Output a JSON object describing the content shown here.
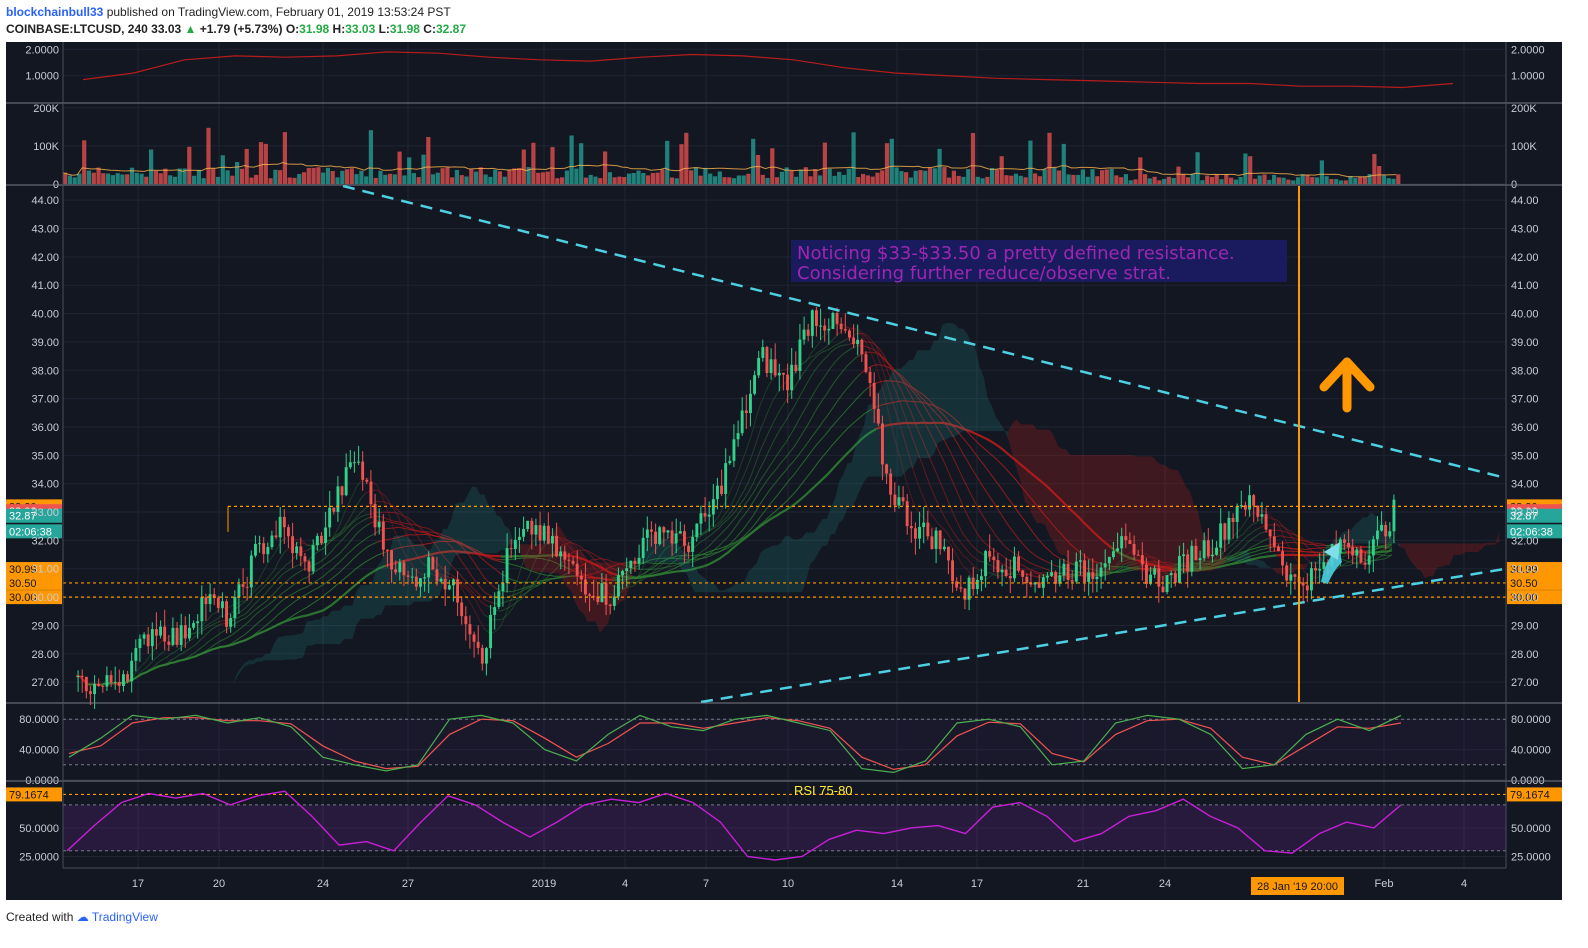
{
  "header": {
    "user": "blockchainbull33",
    "published": "published on TradingView.com, February 01, 2019 13:53:24 PST",
    "symbol": "COINBASE:LTCUSD, 240",
    "last": "33.03",
    "change_arrow": "▲",
    "change": "+1.79 (+5.73%)",
    "o_label": "O:",
    "o": "31.98",
    "h_label": "H:",
    "h": "33.03",
    "l_label": "L:",
    "l": "31.98",
    "c_label": "C:",
    "c": "32.87"
  },
  "footer": {
    "created_with": "Created with",
    "brand": "TradingView"
  },
  "annotation": {
    "line1": "Noticing $33-$33.50 a pretty defined resistance.",
    "line2": "Considering further reduce/observe strat.",
    "rsi_label": "RSI 75-80",
    "date_tag": "28 Jan '19   20:00"
  },
  "colors": {
    "bg": "#131722",
    "bull": "#26a69a",
    "bear": "#ef5350",
    "orange": "#ff9800",
    "trend": "#4dd0e1",
    "annotation_text": "#9c27b0",
    "annotation_bg": "#1a1a5e"
  },
  "chart_data": [
    {
      "type": "line",
      "panel": "indicator-top",
      "ylim": [
        0,
        2.2
      ],
      "ticks": [
        "2.0000",
        "1.0000"
      ],
      "values": [
        0.85,
        1.1,
        1.6,
        1.75,
        1.7,
        1.75,
        1.9,
        1.85,
        1.7,
        1.6,
        1.55,
        1.7,
        1.8,
        1.75,
        1.6,
        1.3,
        1.1,
        1.0,
        0.9,
        0.85,
        0.8,
        0.75,
        0.7,
        0.7,
        0.6,
        0.6,
        0.55,
        0.7
      ]
    },
    {
      "type": "bar",
      "panel": "volume",
      "ylim": [
        0,
        210000
      ],
      "ticks": [
        "200K",
        "100K",
        "0"
      ]
    },
    {
      "type": "candlestick",
      "panel": "price",
      "ylim": [
        26.3,
        44.5
      ],
      "ticks": [
        "44.00",
        "43.00",
        "42.00",
        "41.00",
        "40.00",
        "39.00",
        "38.00",
        "37.00",
        "36.00",
        "35.00",
        "34.00",
        "33.00",
        "32.00",
        "31.00",
        "30.00",
        "29.00",
        "28.00",
        "27.00"
      ],
      "x_ticks": [
        "17",
        "20",
        "24",
        "27",
        "2019",
        "4",
        "7",
        "10",
        "14",
        "17",
        "21",
        "24",
        "Feb",
        "4"
      ],
      "close_path": [
        27.0,
        26.8,
        27.5,
        29.0,
        28.5,
        30.0,
        29.2,
        31.5,
        32.5,
        31.0,
        33.0,
        35.0,
        32.0,
        30.5,
        31.2,
        30.0,
        28.0,
        31.5,
        32.5,
        31.5,
        30.5,
        30.0,
        31.5,
        32.5,
        31.8,
        33.0,
        35.5,
        38.5,
        37.5,
        40.0,
        39.5,
        38.5,
        34.0,
        32.5,
        32.0,
        30.0,
        31.5,
        31.0,
        30.5,
        31.0,
        30.8,
        32.0,
        31.0,
        30.5,
        31.5,
        32.0,
        33.5,
        32.5,
        30.5,
        30.8,
        32.0,
        31.5,
        33.0
      ],
      "levels": [
        {
          "value": 33.2,
          "label": "33.20"
        },
        {
          "value": 30.5,
          "label": "30.50"
        },
        {
          "value": 30.0,
          "label": "30.00"
        }
      ],
      "right_tags": [
        {
          "value": 33.2,
          "label": "33.20",
          "color": "#ff9800"
        },
        {
          "value": 33.03,
          "label": "33.03",
          "color": "#ef5350"
        },
        {
          "value": 32.87,
          "label": "32.87",
          "color": "#26a69a"
        },
        {
          "value": 32.32,
          "label": "02:06:38",
          "color": "#26a69a"
        },
        {
          "value": 30.99,
          "label": "30.99",
          "color": "#ff9800"
        },
        {
          "value": 30.5,
          "label": "30.50",
          "color": "#ff9800"
        },
        {
          "value": 30.0,
          "label": "30.00",
          "color": "#ff9800"
        }
      ],
      "left_tags": [
        {
          "value": 33.2,
          "label": "33.20"
        },
        {
          "value": 33.03,
          "label": "33.03"
        },
        {
          "value": 32.87,
          "label": "32.87"
        },
        {
          "value": 32.32,
          "label": "02:06:38"
        },
        {
          "value": 30.99,
          "label": "30.99"
        },
        {
          "value": 30.5,
          "label": "30.50"
        },
        {
          "value": 30.0,
          "label": "30.00"
        }
      ]
    },
    {
      "type": "line",
      "panel": "stochastic",
      "ylim": [
        0,
        100
      ],
      "ticks": [
        "80.0000",
        "40.0000",
        "0.0000"
      ],
      "k": [
        30,
        55,
        85,
        80,
        85,
        75,
        82,
        70,
        30,
        20,
        12,
        20,
        80,
        85,
        75,
        40,
        25,
        60,
        85,
        70,
        65,
        80,
        85,
        75,
        65,
        15,
        10,
        25,
        75,
        80,
        70,
        20,
        25,
        75,
        85,
        80,
        60,
        15,
        20,
        60,
        80,
        65,
        85
      ],
      "d": [
        35,
        45,
        75,
        82,
        82,
        78,
        78,
        74,
        45,
        25,
        15,
        18,
        60,
        80,
        78,
        55,
        30,
        48,
        75,
        75,
        68,
        75,
        82,
        78,
        68,
        30,
        14,
        20,
        58,
        76,
        74,
        35,
        24,
        60,
        78,
        80,
        68,
        30,
        20,
        45,
        70,
        68,
        75
      ]
    },
    {
      "type": "line",
      "panel": "rsi",
      "ylim": [
        15,
        90
      ],
      "ticks": [
        "50.0000",
        "25.0000"
      ],
      "levels": [
        {
          "value": 79.1674,
          "label": "79.1674"
        }
      ],
      "values": [
        30,
        52,
        72,
        80,
        76,
        80,
        70,
        78,
        82,
        60,
        35,
        38,
        30,
        55,
        78,
        70,
        55,
        42,
        55,
        70,
        75,
        72,
        80,
        72,
        55,
        25,
        22,
        25,
        40,
        48,
        45,
        50,
        52,
        45,
        68,
        72,
        60,
        38,
        45,
        60,
        65,
        75,
        60,
        50,
        30,
        28,
        45,
        55,
        50,
        70
      ]
    }
  ]
}
